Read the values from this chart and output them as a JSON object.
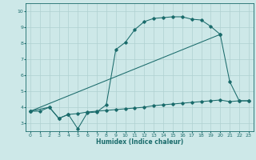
{
  "xlabel": "Humidex (Indice chaleur)",
  "ylabel": "",
  "bg_color": "#cde8e8",
  "grid_color": "#b0d0d0",
  "line_color": "#1a6b6b",
  "xlim": [
    -0.5,
    23.5
  ],
  "ylim": [
    2.5,
    10.5
  ],
  "xticks": [
    0,
    1,
    2,
    3,
    4,
    5,
    6,
    7,
    8,
    9,
    10,
    11,
    12,
    13,
    14,
    15,
    16,
    17,
    18,
    19,
    20,
    21,
    22,
    23
  ],
  "yticks": [
    3,
    4,
    5,
    6,
    7,
    8,
    9,
    10
  ],
  "line1_x": [
    0,
    1,
    2,
    3,
    4,
    5,
    6,
    7,
    8,
    9,
    10,
    11,
    12,
    13,
    14,
    15,
    16,
    17,
    18,
    19,
    20,
    21,
    22,
    23
  ],
  "line1_y": [
    3.75,
    3.75,
    4.0,
    3.3,
    3.55,
    3.6,
    3.7,
    3.75,
    3.8,
    3.85,
    3.9,
    3.95,
    4.0,
    4.1,
    4.15,
    4.2,
    4.25,
    4.3,
    4.35,
    4.4,
    4.45,
    4.35,
    4.4,
    4.4
  ],
  "line2_x": [
    0,
    2,
    3,
    4,
    5,
    6,
    7,
    8,
    9,
    10,
    11,
    12,
    13,
    14,
    15,
    16,
    17,
    18,
    19,
    20,
    21,
    22,
    23
  ],
  "line2_y": [
    3.75,
    4.0,
    3.3,
    3.55,
    2.65,
    3.65,
    3.7,
    4.15,
    7.6,
    8.05,
    8.85,
    9.35,
    9.55,
    9.6,
    9.65,
    9.65,
    9.5,
    9.45,
    9.05,
    8.55,
    5.6,
    4.4,
    4.4
  ],
  "line3_x": [
    0,
    20
  ],
  "line3_y": [
    3.75,
    8.55
  ]
}
